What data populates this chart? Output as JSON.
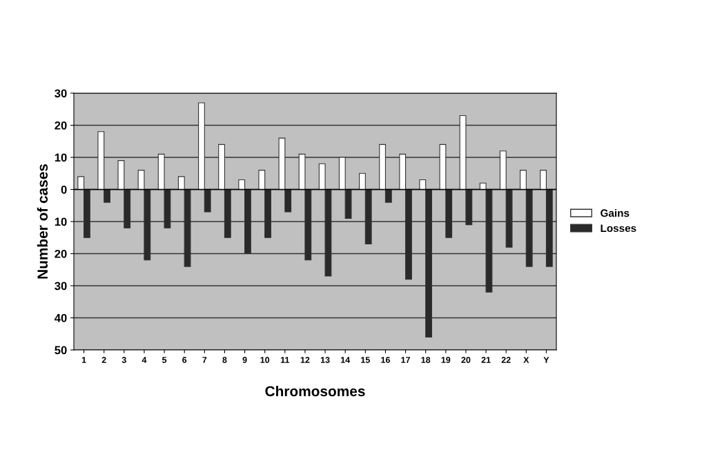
{
  "chart_data": {
    "type": "bar",
    "xlabel": "Chromosomes",
    "ylabel": "Number of cases",
    "categories": [
      "1",
      "2",
      "3",
      "4",
      "5",
      "6",
      "7",
      "8",
      "9",
      "10",
      "11",
      "12",
      "13",
      "14",
      "15",
      "16",
      "17",
      "18",
      "19",
      "20",
      "21",
      "22",
      "X",
      "Y"
    ],
    "series": [
      {
        "name": "Gains",
        "color": "#ffffff",
        "values": [
          4,
          18,
          9,
          6,
          11,
          4,
          27,
          14,
          3,
          6,
          16,
          11,
          8,
          10,
          5,
          14,
          11,
          3,
          14,
          23,
          2,
          12,
          6,
          6
        ]
      },
      {
        "name": "Losses",
        "color": "#2a2a2a",
        "values": [
          -15,
          -4,
          -12,
          -22,
          -12,
          -24,
          -7,
          -15,
          -20,
          -15,
          -7,
          -22,
          -27,
          -9,
          -17,
          -4,
          -28,
          -46,
          -15,
          -11,
          -32,
          -18,
          -24,
          -24
        ]
      }
    ],
    "ylim": [
      -50,
      30
    ],
    "yticks": [
      {
        "value": -50,
        "label": "50"
      },
      {
        "value": -40,
        "label": "40"
      },
      {
        "value": -30,
        "label": "30"
      },
      {
        "value": -20,
        "label": "20"
      },
      {
        "value": -10,
        "label": "10"
      },
      0,
      10,
      20,
      30
    ],
    "grid": "y",
    "legend": "right"
  }
}
